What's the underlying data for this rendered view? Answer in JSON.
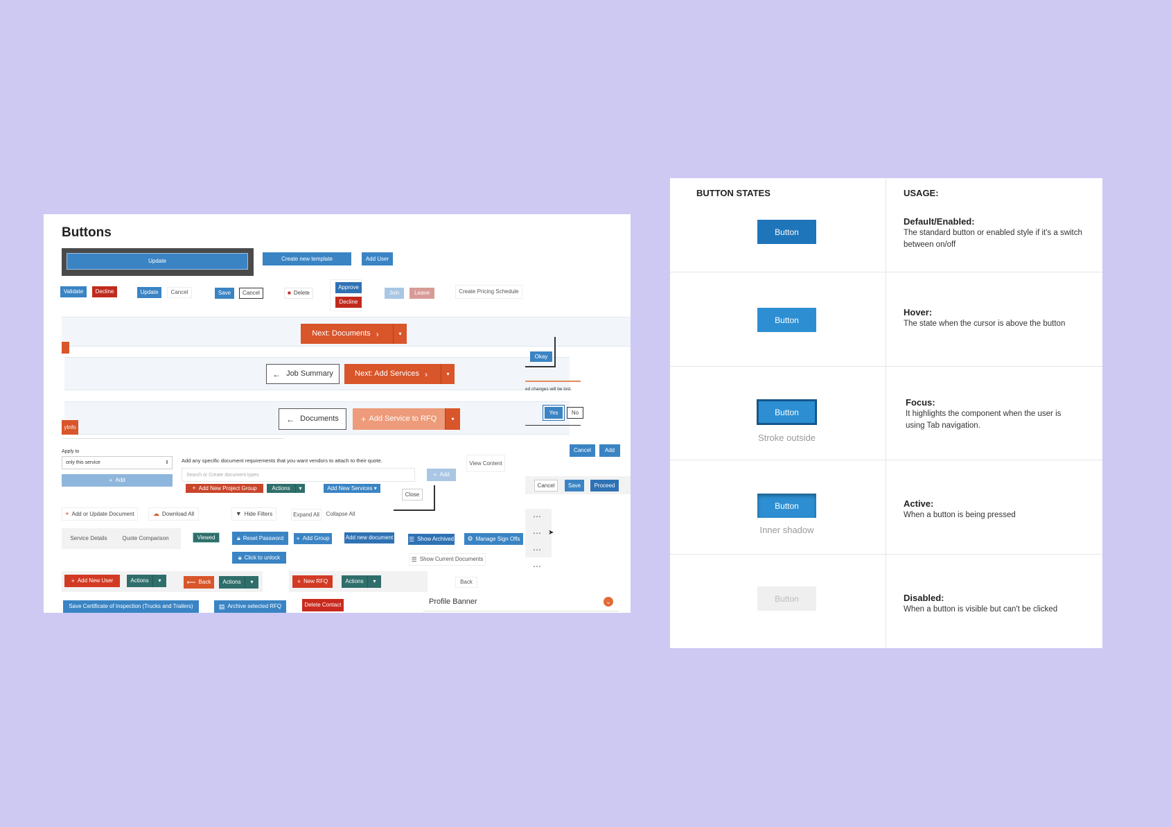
{
  "left_panel": {
    "title": "Buttons",
    "row1": {
      "update_large": "Update",
      "create_template": "Create new template",
      "add_user": "Add User"
    },
    "row2": {
      "validate": "Validate",
      "decline": "Decline",
      "update": "Update",
      "cancel": "Cancel",
      "save": "Save",
      "cancel2": "Cancel",
      "delete": "Delete",
      "approve": "Approve",
      "decline2": "Decline",
      "join": "Join",
      "leave": "Leave",
      "create_pricing": "Create Pricing Schedule"
    },
    "band1": {
      "next_documents": "Next: Documents"
    },
    "band2": {
      "job_summary": "Job Summary",
      "next_add_services": "Next: Add Services"
    },
    "band3": {
      "documents": "Documents",
      "add_service_rfq": "Add Service to RFQ"
    },
    "side_tabs": {
      "tab1": "",
      "tab2": "yInfo"
    },
    "dialog": {
      "okay": "Okay",
      "message": "ed changes will be lost.",
      "yes": "Yes",
      "no": "No"
    },
    "form": {
      "apply_to_label": "Apply to",
      "apply_to_value": "only this service",
      "add": "Add",
      "doc_req_text": "Add any specific document requirements that you want vendors to attach to their quote.",
      "search_placeholder": "Search or Create document types",
      "add_small": "Add",
      "view_content": "View Content",
      "cancel": "Cancel",
      "add_btn": "Add",
      "add_new_project_group": "Add New Project Group",
      "actions": "Actions",
      "add_new_services": "Add New Services ▾",
      "close": "Close",
      "cancel3": "Cancel",
      "save3": "Save",
      "proceed": "Proceed"
    },
    "toolbar": {
      "add_update_document": "Add or Update Document",
      "download_all": "Download All",
      "hide_filters": "Hide Filters",
      "expand_all": "Expand All",
      "collapse_all": "Collapse All",
      "more": "⋯"
    },
    "tabs_row": {
      "service_details": "Service Details",
      "quote_comparison": "Quote Comparison",
      "viewed": "Viewed",
      "reset_password": "Reset Password",
      "add_group": "Add Group",
      "add_new_document": "Add new document",
      "show_archived": "Show Archived",
      "manage_sign_offs": "Manage Sign Offs",
      "click_to_unlock": "Click to unlock",
      "show_current_documents": "Show Current Documents"
    },
    "bottom_row": {
      "add_new_user": "Add New User",
      "actions1": "Actions",
      "back": "Back",
      "actions2": "Actions",
      "new_rfq": "New RFQ",
      "actions3": "Actions",
      "back2": "Back",
      "profile_banner": "Profile Banner",
      "save_certificate": "Save Certificate of Inspection (Trucks and Trailers)",
      "archive_rfq": "Archive selected RFQ",
      "delete_contact": "Delete Contact"
    }
  },
  "right_panel": {
    "col1_header": "BUTTON STATES",
    "col2_header": "USAGE:",
    "rows": [
      {
        "button": "Button",
        "caption": "",
        "title": "Default/Enabled:",
        "desc": "The standard button or enabled style if it's a switch between on/off",
        "color": "#1f75b9"
      },
      {
        "button": "Button",
        "caption": "",
        "title": "Hover:",
        "desc": "The state when the cursor is above the button",
        "color": "#2d8fd2"
      },
      {
        "button": "Button",
        "caption": "Stroke outside",
        "title": "Focus:",
        "desc": "It highlights the component when the user is using Tab navigation.",
        "color": "#2d8fd2"
      },
      {
        "button": "Button",
        "caption": "Inner shadow",
        "title": "Active:",
        "desc": "When a button is being pressed",
        "color": "#2d8fd2"
      },
      {
        "button": "Button",
        "caption": "",
        "title": "Disabled:",
        "desc": "When a button is visible but can't be clicked",
        "color": "#efefef"
      }
    ]
  }
}
